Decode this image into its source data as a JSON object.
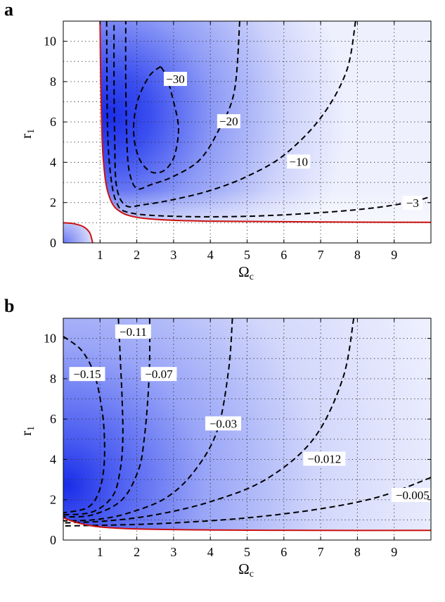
{
  "chart_data": [
    {
      "panel": "a",
      "type": "heatmap",
      "xlabel": "Ω",
      "xlabel_sub": "c",
      "ylabel": "r",
      "ylabel_sub": "1",
      "xlim": [
        0,
        10
      ],
      "ylim": [
        0,
        11
      ],
      "xticks": [
        1,
        2,
        3,
        4,
        5,
        6,
        7,
        8,
        9
      ],
      "yticks": [
        0,
        2,
        4,
        6,
        8,
        10
      ],
      "grid": true,
      "grid_style": "dotted",
      "colormap": [
        "#ffffff",
        "#1a2de8"
      ],
      "boundary_color": "#cc1111",
      "boundary_curves": [
        {
          "points": [
            [
              1.0,
              11
            ],
            [
              1.02,
              8
            ],
            [
              1.06,
              5
            ],
            [
              1.12,
              3.5
            ],
            [
              1.2,
              2.6
            ],
            [
              1.35,
              1.9
            ],
            [
              1.55,
              1.55
            ],
            [
              1.8,
              1.35
            ],
            [
              2.2,
              1.22
            ],
            [
              3,
              1.12
            ],
            [
              4,
              1.08
            ],
            [
              6,
              1.05
            ],
            [
              8,
              1.03
            ],
            [
              10,
              1.02
            ]
          ]
        },
        {
          "points": [
            [
              0,
              1.0
            ],
            [
              0.3,
              0.95
            ],
            [
              0.55,
              0.8
            ],
            [
              0.72,
              0.5
            ],
            [
              0.8,
              0
            ]
          ]
        }
      ],
      "contours": [
        {
          "level": "−30",
          "label_at": [
            3.05,
            8.1
          ],
          "points": [
            [
              2.65,
              8.75
            ],
            [
              2.35,
              8.3
            ],
            [
              2.05,
              7.2
            ],
            [
              1.92,
              6.0
            ],
            [
              1.95,
              4.9
            ],
            [
              2.12,
              4.0
            ],
            [
              2.42,
              3.5
            ],
            [
              2.75,
              3.6
            ],
            [
              3.0,
              4.2
            ],
            [
              3.12,
              5.2
            ],
            [
              3.12,
              6.0
            ],
            [
              3.0,
              7.0
            ],
            [
              2.82,
              8.2
            ],
            [
              2.65,
              8.75
            ]
          ]
        },
        {
          "level": "−20",
          "label_at": [
            4.5,
            6.0
          ],
          "points": [
            [
              4.8,
              11
            ],
            [
              4.65,
              7.5
            ],
            [
              4.2,
              5.5
            ],
            [
              3.7,
              4.1
            ],
            [
              3.0,
              3.3
            ],
            [
              2.4,
              2.9
            ],
            [
              2.0,
              2.7
            ],
            [
              1.8,
              3.5
            ],
            [
              1.73,
              5
            ],
            [
              1.7,
              8
            ],
            [
              1.7,
              11
            ]
          ]
        },
        {
          "level": "−10",
          "label_at": [
            6.4,
            4.0
          ],
          "points": [
            [
              7.95,
              11
            ],
            [
              7.7,
              8.5
            ],
            [
              7.0,
              6.2
            ],
            [
              6.0,
              4.35
            ],
            [
              5.0,
              3.3
            ],
            [
              4.0,
              2.6
            ],
            [
              3.0,
              2.15
            ],
            [
              2.2,
              1.9
            ],
            [
              1.7,
              1.85
            ],
            [
              1.45,
              2.8
            ],
            [
              1.4,
              5
            ],
            [
              1.38,
              8
            ],
            [
              1.38,
              11
            ]
          ]
        },
        {
          "level": "−3",
          "label_at": [
            9.5,
            1.95
          ],
          "points": [
            [
              1.18,
              11
            ],
            [
              1.2,
              6
            ],
            [
              1.28,
              3.5
            ],
            [
              1.45,
              2.0
            ],
            [
              1.8,
              1.5
            ],
            [
              3,
              1.32
            ],
            [
              5,
              1.32
            ],
            [
              7,
              1.5
            ],
            [
              8.5,
              1.75
            ],
            [
              9.5,
              2.05
            ],
            [
              10,
              2.3
            ]
          ]
        }
      ]
    },
    {
      "panel": "b",
      "type": "heatmap",
      "xlabel": "Ω",
      "xlabel_sub": "c",
      "ylabel": "r",
      "ylabel_sub": "1",
      "xlim": [
        0,
        10
      ],
      "ylim": [
        0,
        11
      ],
      "xticks": [
        1,
        2,
        3,
        4,
        5,
        6,
        7,
        8,
        9
      ],
      "yticks": [
        0,
        2,
        4,
        6,
        8,
        10
      ],
      "grid": true,
      "grid_style": "dotted",
      "colormap": [
        "#ffffff",
        "#1a2de8"
      ],
      "boundary_color": "#cc1111",
      "boundary_curves": [
        {
          "points": [
            [
              0,
              1.1
            ],
            [
              0.4,
              0.85
            ],
            [
              1.0,
              0.65
            ],
            [
              2.0,
              0.55
            ],
            [
              4,
              0.5
            ],
            [
              7,
              0.48
            ],
            [
              10,
              0.48
            ]
          ]
        }
      ],
      "contours": [
        {
          "level": "−0.15",
          "label_at": [
            0.65,
            8.2
          ],
          "points": [
            [
              0,
              10.1
            ],
            [
              0.5,
              9.4
            ],
            [
              0.85,
              8.2
            ],
            [
              1.05,
              6.5
            ],
            [
              1.12,
              5
            ],
            [
              1.1,
              3.5
            ],
            [
              0.95,
              2.3
            ],
            [
              0.65,
              1.6
            ],
            [
              0,
              1.35
            ]
          ]
        },
        {
          "level": "−0.11",
          "label_at": [
            1.9,
            10.3
          ],
          "points": [
            [
              1.5,
              11
            ],
            [
              1.55,
              9
            ],
            [
              1.6,
              7
            ],
            [
              1.62,
              5
            ],
            [
              1.55,
              3.5
            ],
            [
              1.35,
              2.2
            ],
            [
              0.8,
              1.4
            ],
            [
              0,
              1.25
            ]
          ]
        },
        {
          "level": "−0.07",
          "label_at": [
            2.6,
            8.2
          ],
          "points": [
            [
              2.35,
              11
            ],
            [
              2.35,
              9
            ],
            [
              2.3,
              7
            ],
            [
              2.2,
              5
            ],
            [
              2.05,
              3.5
            ],
            [
              1.6,
              2.0
            ],
            [
              0.8,
              1.25
            ],
            [
              0,
              1.15
            ]
          ]
        },
        {
          "level": "−0.03",
          "label_at": [
            4.35,
            5.75
          ],
          "points": [
            [
              4.6,
              11
            ],
            [
              4.5,
              8.5
            ],
            [
              4.2,
              5.5
            ],
            [
              3.6,
              3.5
            ],
            [
              2.8,
              2.1
            ],
            [
              1.7,
              1.3
            ],
            [
              0.8,
              1.0
            ],
            [
              0,
              0.95
            ]
          ]
        },
        {
          "level": "−0.012",
          "label_at": [
            7.1,
            4.0
          ],
          "points": [
            [
              7.9,
              11
            ],
            [
              7.6,
              8
            ],
            [
              6.8,
              5
            ],
            [
              5.5,
              3.0
            ],
            [
              4.0,
              1.9
            ],
            [
              2.5,
              1.25
            ],
            [
              1.2,
              0.95
            ],
            [
              0,
              0.85
            ]
          ]
        },
        {
          "level": "−0.005",
          "label_at": [
            9.5,
            2.2
          ],
          "points": [
            [
              10,
              3.1
            ],
            [
              8.6,
              2.15
            ],
            [
              7.0,
              1.55
            ],
            [
              5.0,
              1.1
            ],
            [
              3.0,
              0.85
            ],
            [
              1.5,
              0.75
            ],
            [
              0,
              0.7
            ]
          ]
        }
      ]
    }
  ]
}
